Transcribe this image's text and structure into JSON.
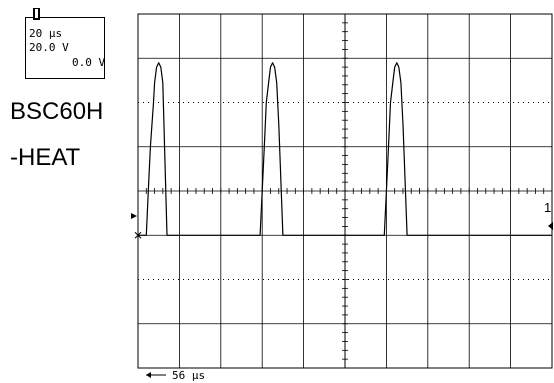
{
  "settings": {
    "timebase": "20 μs",
    "volts_per_div": "20.0 V",
    "offset": "0.0 V"
  },
  "device_label": {
    "line1": "BSC60H",
    "line2": "-HEAT"
  },
  "trigger_position_label": "56 μs",
  "channel_marker": "1",
  "chart_data": {
    "type": "line",
    "title": "",
    "xlabel": "",
    "ylabel": "",
    "x_unit": "μs",
    "y_unit": "V",
    "xlim": [
      0,
      200
    ],
    "ylim": [
      -80,
      80
    ],
    "grid": true,
    "divisions": {
      "x": 10,
      "y": 8
    },
    "series": [
      {
        "name": "",
        "color": "#000000",
        "x": [
          0,
          2,
          4,
          5,
          6,
          7.5,
          8,
          9,
          10,
          11,
          12,
          14,
          18,
          40,
          59,
          60,
          61,
          62,
          63.5,
          64,
          65,
          66,
          67,
          68,
          70,
          74,
          100,
          119,
          120,
          121,
          122,
          123.5,
          124,
          125,
          126,
          127,
          128,
          130,
          134,
          160,
          200
        ],
        "y": [
          -20,
          -20,
          -20,
          0,
          20,
          40,
          49,
          56,
          58,
          56,
          49,
          -20,
          -20,
          -20,
          -20,
          0,
          20,
          40,
          52,
          56,
          58,
          56,
          49,
          30,
          -20,
          -20,
          -20,
          -20,
          0,
          20,
          40,
          52,
          56,
          58,
          56,
          49,
          30,
          -20,
          -20,
          -20,
          -20
        ]
      }
    ]
  }
}
